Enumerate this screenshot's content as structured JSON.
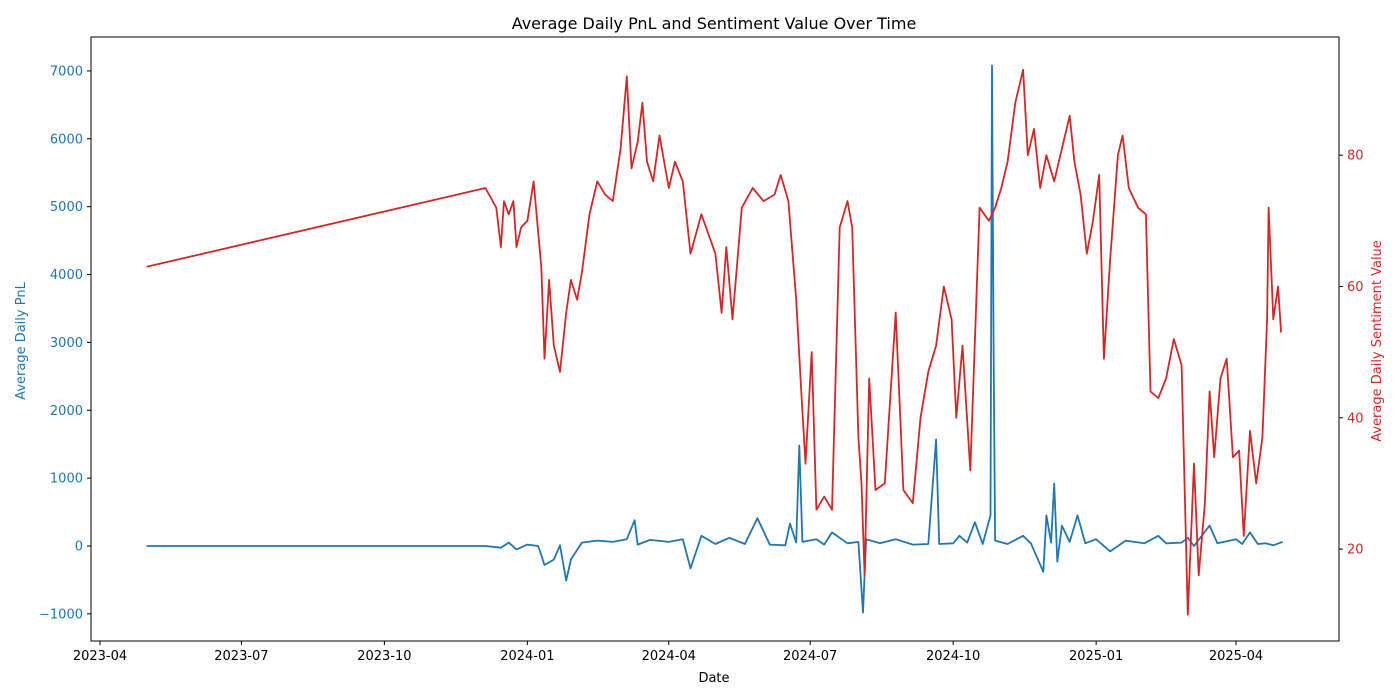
{
  "chart_data": {
    "type": "line",
    "title": "Average Daily PnL and Sentiment Value Over Time",
    "xlabel": "Date",
    "ylabel_left": "Average Daily PnL",
    "ylabel_right": "Average Daily Sentiment Value",
    "x_ticks": [
      "2023-04",
      "2023-07",
      "2023-10",
      "2024-01",
      "2024-04",
      "2024-07",
      "2024-10",
      "2025-01",
      "2025-04"
    ],
    "ylim_left": [
      -1400,
      7500
    ],
    "yticks_left": [
      -1000,
      0,
      1000,
      2000,
      3000,
      4000,
      5000,
      6000,
      7000
    ],
    "ylim_right": [
      6,
      98
    ],
    "yticks_right": [
      20,
      40,
      60,
      80
    ],
    "grid": false,
    "colors": {
      "left": "#1f77b4",
      "right": "#d62728"
    },
    "series": [
      {
        "axis": "left",
        "values": [
          [
            "2023-05-01",
            0
          ],
          [
            "2023-12-05",
            0
          ],
          [
            "2023-12-15",
            -25
          ],
          [
            "2023-12-20",
            50
          ],
          [
            "2023-12-25",
            -50
          ],
          [
            "2024-01-01",
            20
          ],
          [
            "2024-01-08",
            0
          ],
          [
            "2024-01-12",
            -280
          ],
          [
            "2024-01-18",
            -200
          ],
          [
            "2024-01-22",
            10
          ],
          [
            "2024-01-26",
            -510
          ],
          [
            "2024-01-29",
            -200
          ],
          [
            "2024-02-05",
            50
          ],
          [
            "2024-02-15",
            80
          ],
          [
            "2024-02-25",
            60
          ],
          [
            "2024-03-05",
            100
          ],
          [
            "2024-03-10",
            380
          ],
          [
            "2024-03-12",
            20
          ],
          [
            "2024-03-20",
            90
          ],
          [
            "2024-04-01",
            60
          ],
          [
            "2024-04-10",
            100
          ],
          [
            "2024-04-15",
            -330
          ],
          [
            "2024-04-22",
            150
          ],
          [
            "2024-05-01",
            30
          ],
          [
            "2024-05-10",
            120
          ],
          [
            "2024-05-20",
            30
          ],
          [
            "2024-05-28",
            410
          ],
          [
            "2024-06-05",
            20
          ],
          [
            "2024-06-15",
            10
          ],
          [
            "2024-06-18",
            330
          ],
          [
            "2024-06-22",
            50
          ],
          [
            "2024-06-24",
            1480
          ],
          [
            "2024-06-26",
            60
          ],
          [
            "2024-07-05",
            100
          ],
          [
            "2024-07-10",
            20
          ],
          [
            "2024-07-15",
            200
          ],
          [
            "2024-07-25",
            40
          ],
          [
            "2024-08-01",
            60
          ],
          [
            "2024-08-04",
            -980
          ],
          [
            "2024-08-06",
            100
          ],
          [
            "2024-08-15",
            40
          ],
          [
            "2024-08-25",
            100
          ],
          [
            "2024-09-05",
            20
          ],
          [
            "2024-09-15",
            30
          ],
          [
            "2024-09-20",
            1570
          ],
          [
            "2024-09-22",
            30
          ],
          [
            "2024-10-01",
            40
          ],
          [
            "2024-10-05",
            150
          ],
          [
            "2024-10-10",
            50
          ],
          [
            "2024-10-15",
            350
          ],
          [
            "2024-10-20",
            30
          ],
          [
            "2024-10-25",
            450
          ],
          [
            "2024-10-26",
            7080
          ],
          [
            "2024-10-27",
            2900
          ],
          [
            "2024-10-28",
            80
          ],
          [
            "2024-11-05",
            30
          ],
          [
            "2024-11-15",
            150
          ],
          [
            "2024-11-20",
            40
          ],
          [
            "2024-11-28",
            -380
          ],
          [
            "2024-11-30",
            450
          ],
          [
            "2024-12-03",
            50
          ],
          [
            "2024-12-05",
            920
          ],
          [
            "2024-12-07",
            -230
          ],
          [
            "2024-12-10",
            300
          ],
          [
            "2024-12-15",
            60
          ],
          [
            "2024-12-20",
            450
          ],
          [
            "2024-12-25",
            40
          ],
          [
            "2025-01-01",
            100
          ],
          [
            "2025-01-10",
            -80
          ],
          [
            "2025-01-20",
            80
          ],
          [
            "2025-02-01",
            40
          ],
          [
            "2025-02-10",
            150
          ],
          [
            "2025-02-15",
            40
          ],
          [
            "2025-02-25",
            50
          ],
          [
            "2025-03-01",
            120
          ],
          [
            "2025-03-05",
            0
          ],
          [
            "2025-03-15",
            300
          ],
          [
            "2025-03-20",
            40
          ],
          [
            "2025-04-01",
            100
          ],
          [
            "2025-04-05",
            30
          ],
          [
            "2025-04-10",
            200
          ],
          [
            "2025-04-15",
            30
          ],
          [
            "2025-04-20",
            40
          ],
          [
            "2025-04-25",
            10
          ],
          [
            "2025-05-01",
            60
          ]
        ]
      },
      {
        "axis": "right",
        "values": [
          [
            "2023-05-01",
            63
          ],
          [
            "2023-12-05",
            75
          ],
          [
            "2023-12-12",
            72
          ],
          [
            "2023-12-15",
            66
          ],
          [
            "2023-12-17",
            73
          ],
          [
            "2023-12-20",
            71
          ],
          [
            "2023-12-23",
            73
          ],
          [
            "2023-12-25",
            66
          ],
          [
            "2023-12-28",
            69
          ],
          [
            "2024-01-01",
            70
          ],
          [
            "2024-01-05",
            76
          ],
          [
            "2024-01-10",
            63
          ],
          [
            "2024-01-12",
            49
          ],
          [
            "2024-01-15",
            61
          ],
          [
            "2024-01-18",
            51
          ],
          [
            "2024-01-22",
            47
          ],
          [
            "2024-01-26",
            56
          ],
          [
            "2024-01-29",
            61
          ],
          [
            "2024-02-02",
            58
          ],
          [
            "2024-02-05",
            62
          ],
          [
            "2024-02-10",
            71
          ],
          [
            "2024-02-15",
            76
          ],
          [
            "2024-02-20",
            74
          ],
          [
            "2024-02-25",
            73
          ],
          [
            "2024-03-01",
            81
          ],
          [
            "2024-03-05",
            92
          ],
          [
            "2024-03-08",
            78
          ],
          [
            "2024-03-12",
            82
          ],
          [
            "2024-03-15",
            88
          ],
          [
            "2024-03-18",
            79
          ],
          [
            "2024-03-22",
            76
          ],
          [
            "2024-03-26",
            83
          ],
          [
            "2024-04-01",
            75
          ],
          [
            "2024-04-05",
            79
          ],
          [
            "2024-04-10",
            76
          ],
          [
            "2024-04-15",
            65
          ],
          [
            "2024-04-22",
            71
          ],
          [
            "2024-05-01",
            65
          ],
          [
            "2024-05-05",
            56
          ],
          [
            "2024-05-08",
            66
          ],
          [
            "2024-05-12",
            55
          ],
          [
            "2024-05-18",
            72
          ],
          [
            "2024-05-25",
            75
          ],
          [
            "2024-06-01",
            73
          ],
          [
            "2024-06-08",
            74
          ],
          [
            "2024-06-12",
            77
          ],
          [
            "2024-06-17",
            73
          ],
          [
            "2024-06-22",
            58
          ],
          [
            "2024-06-25",
            45
          ],
          [
            "2024-06-28",
            33
          ],
          [
            "2024-07-02",
            50
          ],
          [
            "2024-07-05",
            26
          ],
          [
            "2024-07-10",
            28
          ],
          [
            "2024-07-15",
            26
          ],
          [
            "2024-07-20",
            69
          ],
          [
            "2024-07-25",
            73
          ],
          [
            "2024-07-28",
            69
          ],
          [
            "2024-08-01",
            37
          ],
          [
            "2024-08-03",
            30
          ],
          [
            "2024-08-05",
            16
          ],
          [
            "2024-08-08",
            46
          ],
          [
            "2024-08-12",
            29
          ],
          [
            "2024-08-18",
            30
          ],
          [
            "2024-08-25",
            56
          ],
          [
            "2024-08-30",
            29
          ],
          [
            "2024-09-05",
            27
          ],
          [
            "2024-09-10",
            40
          ],
          [
            "2024-09-15",
            47
          ],
          [
            "2024-09-20",
            51
          ],
          [
            "2024-09-25",
            60
          ],
          [
            "2024-09-30",
            55
          ],
          [
            "2024-10-03",
            40
          ],
          [
            "2024-10-07",
            51
          ],
          [
            "2024-10-12",
            32
          ],
          [
            "2024-10-18",
            72
          ],
          [
            "2024-10-24",
            70
          ],
          [
            "2024-10-28",
            72
          ],
          [
            "2024-11-01",
            75
          ],
          [
            "2024-11-05",
            79
          ],
          [
            "2024-11-10",
            88
          ],
          [
            "2024-11-15",
            93
          ],
          [
            "2024-11-18",
            80
          ],
          [
            "2024-11-22",
            84
          ],
          [
            "2024-11-26",
            75
          ],
          [
            "2024-11-30",
            80
          ],
          [
            "2024-12-05",
            76
          ],
          [
            "2024-12-10",
            81
          ],
          [
            "2024-12-15",
            86
          ],
          [
            "2024-12-18",
            79
          ],
          [
            "2024-12-22",
            74
          ],
          [
            "2024-12-26",
            65
          ],
          [
            "2024-12-30",
            70
          ],
          [
            "2025-01-03",
            77
          ],
          [
            "2025-01-06",
            49
          ],
          [
            "2025-01-10",
            64
          ],
          [
            "2025-01-15",
            80
          ],
          [
            "2025-01-18",
            83
          ],
          [
            "2025-01-22",
            75
          ],
          [
            "2025-01-28",
            72
          ],
          [
            "2025-02-02",
            71
          ],
          [
            "2025-02-05",
            44
          ],
          [
            "2025-02-10",
            43
          ],
          [
            "2025-02-15",
            46
          ],
          [
            "2025-02-20",
            52
          ],
          [
            "2025-02-25",
            48
          ],
          [
            "2025-03-01",
            10
          ],
          [
            "2025-03-05",
            33
          ],
          [
            "2025-03-08",
            16
          ],
          [
            "2025-03-12",
            27
          ],
          [
            "2025-03-15",
            44
          ],
          [
            "2025-03-18",
            34
          ],
          [
            "2025-03-22",
            46
          ],
          [
            "2025-03-26",
            49
          ],
          [
            "2025-03-30",
            34
          ],
          [
            "2025-04-03",
            35
          ],
          [
            "2025-04-06",
            22
          ],
          [
            "2025-04-10",
            38
          ],
          [
            "2025-04-14",
            30
          ],
          [
            "2025-04-18",
            37
          ],
          [
            "2025-04-21",
            55
          ],
          [
            "2025-04-22",
            72
          ],
          [
            "2025-04-25",
            55
          ],
          [
            "2025-04-28",
            60
          ],
          [
            "2025-04-30",
            53
          ]
        ]
      }
    ]
  }
}
